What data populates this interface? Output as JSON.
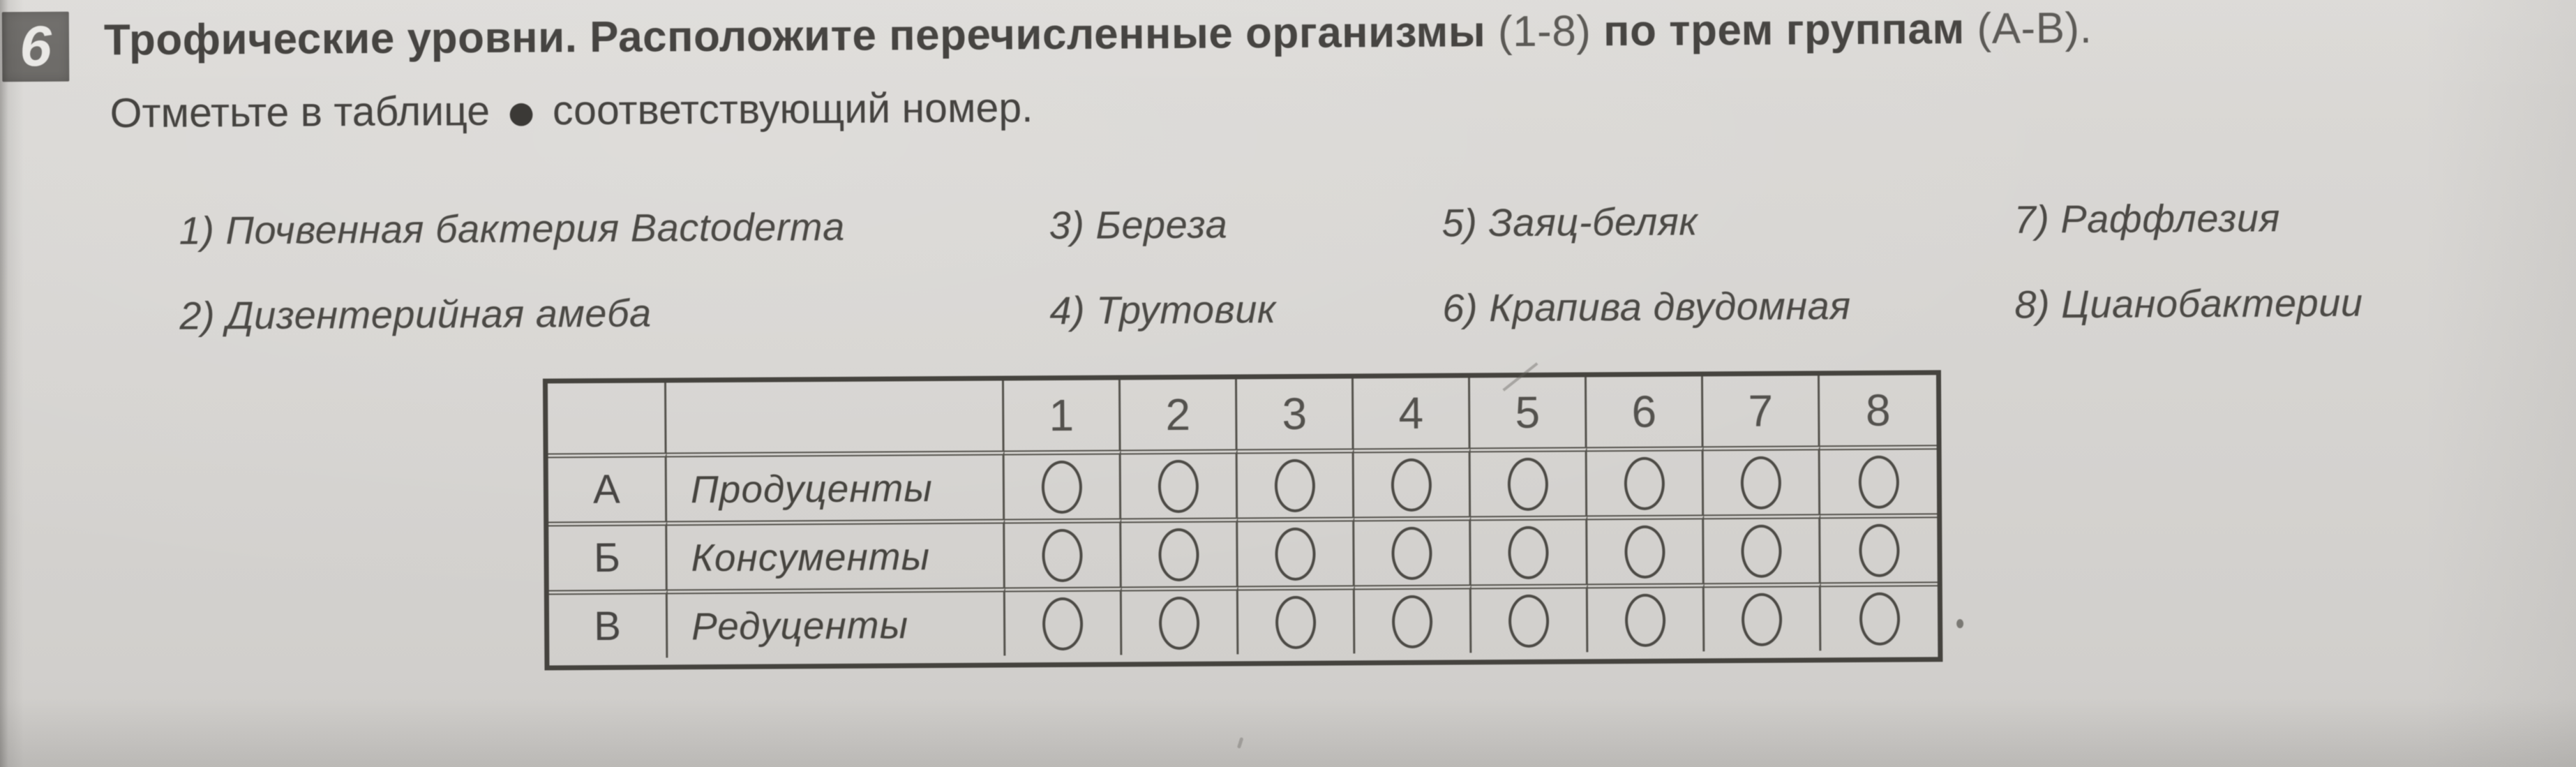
{
  "header": {
    "number": "6",
    "title_bold_1": "Трофические уровни. Расположите перечисленные организмы ",
    "title_light_1": "(1-8)",
    "title_bold_2": " по трем группам ",
    "title_light_2": "(А-В).",
    "instruction_prefix": "Отметьте в таблице",
    "marker_glyph": "●",
    "instruction_suffix": "соответствующий номер."
  },
  "organisms": [
    {
      "num": "1)",
      "name": "Почвенная бактерия Bactoderma"
    },
    {
      "num": "2)",
      "name": "Дизентерийная амеба"
    },
    {
      "num": "3)",
      "name": "Береза"
    },
    {
      "num": "4)",
      "name": "Трутовик"
    },
    {
      "num": "5)",
      "name": "Заяц-беляк"
    },
    {
      "num": "6)",
      "name": "Крапива двудомная"
    },
    {
      "num": "7)",
      "name": "Раффлезия"
    },
    {
      "num": "8)",
      "name": "Цианобактерии"
    }
  ],
  "table": {
    "column_numbers": [
      "1",
      "2",
      "3",
      "4",
      "5",
      "6",
      "7",
      "8"
    ],
    "rows": [
      {
        "letter": "А",
        "label": "Продуценты"
      },
      {
        "letter": "Б",
        "label": "Консументы"
      },
      {
        "letter": "В",
        "label": "Редуценты"
      }
    ]
  },
  "colors": {
    "paper": "#d7d5d2",
    "badge_bg": "#6b6966",
    "ink": "#403e3b",
    "table_line": "#55534d"
  }
}
